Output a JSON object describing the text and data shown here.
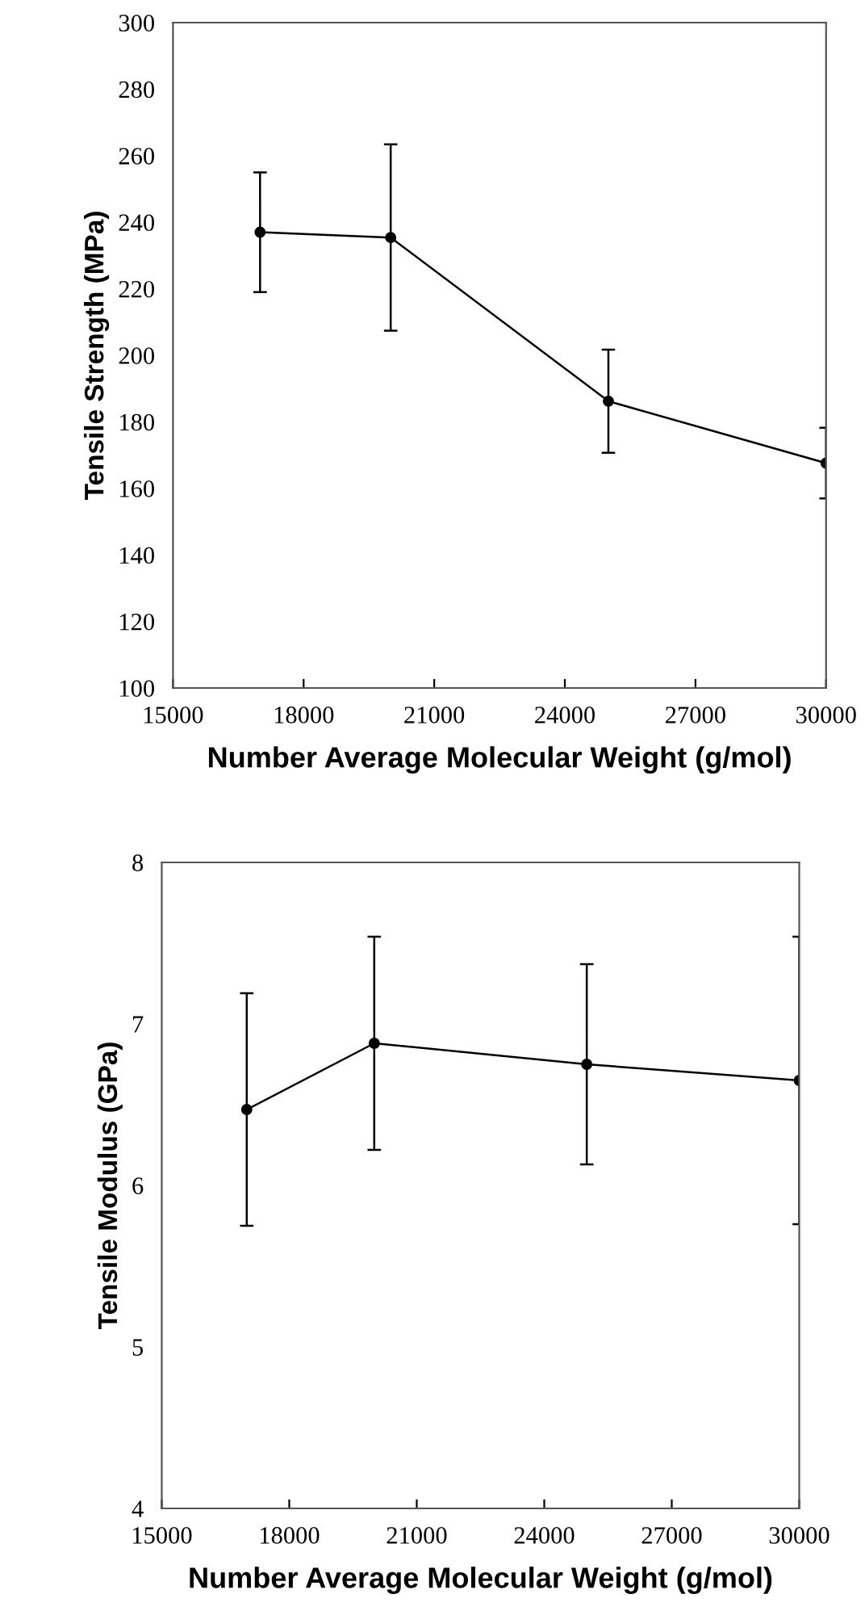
{
  "chart_data": [
    {
      "type": "line",
      "xlabel": "Number Average Molecular Weight (g/mol)",
      "ylabel": "Tensile Strength (MPa)",
      "x": [
        17000,
        20000,
        25000,
        30000
      ],
      "series": [
        {
          "color": "#000000",
          "values": [
            237,
            235.4,
            186.2,
            167.6
          ],
          "errors": [
            18,
            28,
            15.5,
            10.6
          ]
        }
      ],
      "xlim": [
        15000,
        30000
      ],
      "xticks": [
        15000,
        18000,
        21000,
        24000,
        27000,
        30000
      ],
      "ylim": [
        100,
        300
      ],
      "yticks": [
        100,
        120,
        140,
        160,
        180,
        200,
        220,
        240,
        260,
        280,
        300
      ],
      "marker": "circle",
      "line_style": "solid",
      "grid": false,
      "legend": false
    },
    {
      "type": "line",
      "xlabel": "Number Average Molecular Weight (g/mol)",
      "ylabel": "Tensile Modulus (GPa)",
      "x": [
        17000,
        20000,
        25000,
        30000
      ],
      "series": [
        {
          "color": "#000000",
          "values": [
            6.47,
            6.88,
            6.75,
            6.65
          ],
          "errors": [
            0.72,
            0.66,
            0.62,
            0.89
          ]
        }
      ],
      "xlim": [
        15000,
        30000
      ],
      "xticks": [
        15000,
        18000,
        21000,
        24000,
        27000,
        30000
      ],
      "ylim": [
        4,
        8
      ],
      "yticks": [
        4,
        5,
        6,
        7,
        8
      ],
      "marker": "circle",
      "line_style": "solid",
      "grid": false,
      "legend": false
    }
  ]
}
